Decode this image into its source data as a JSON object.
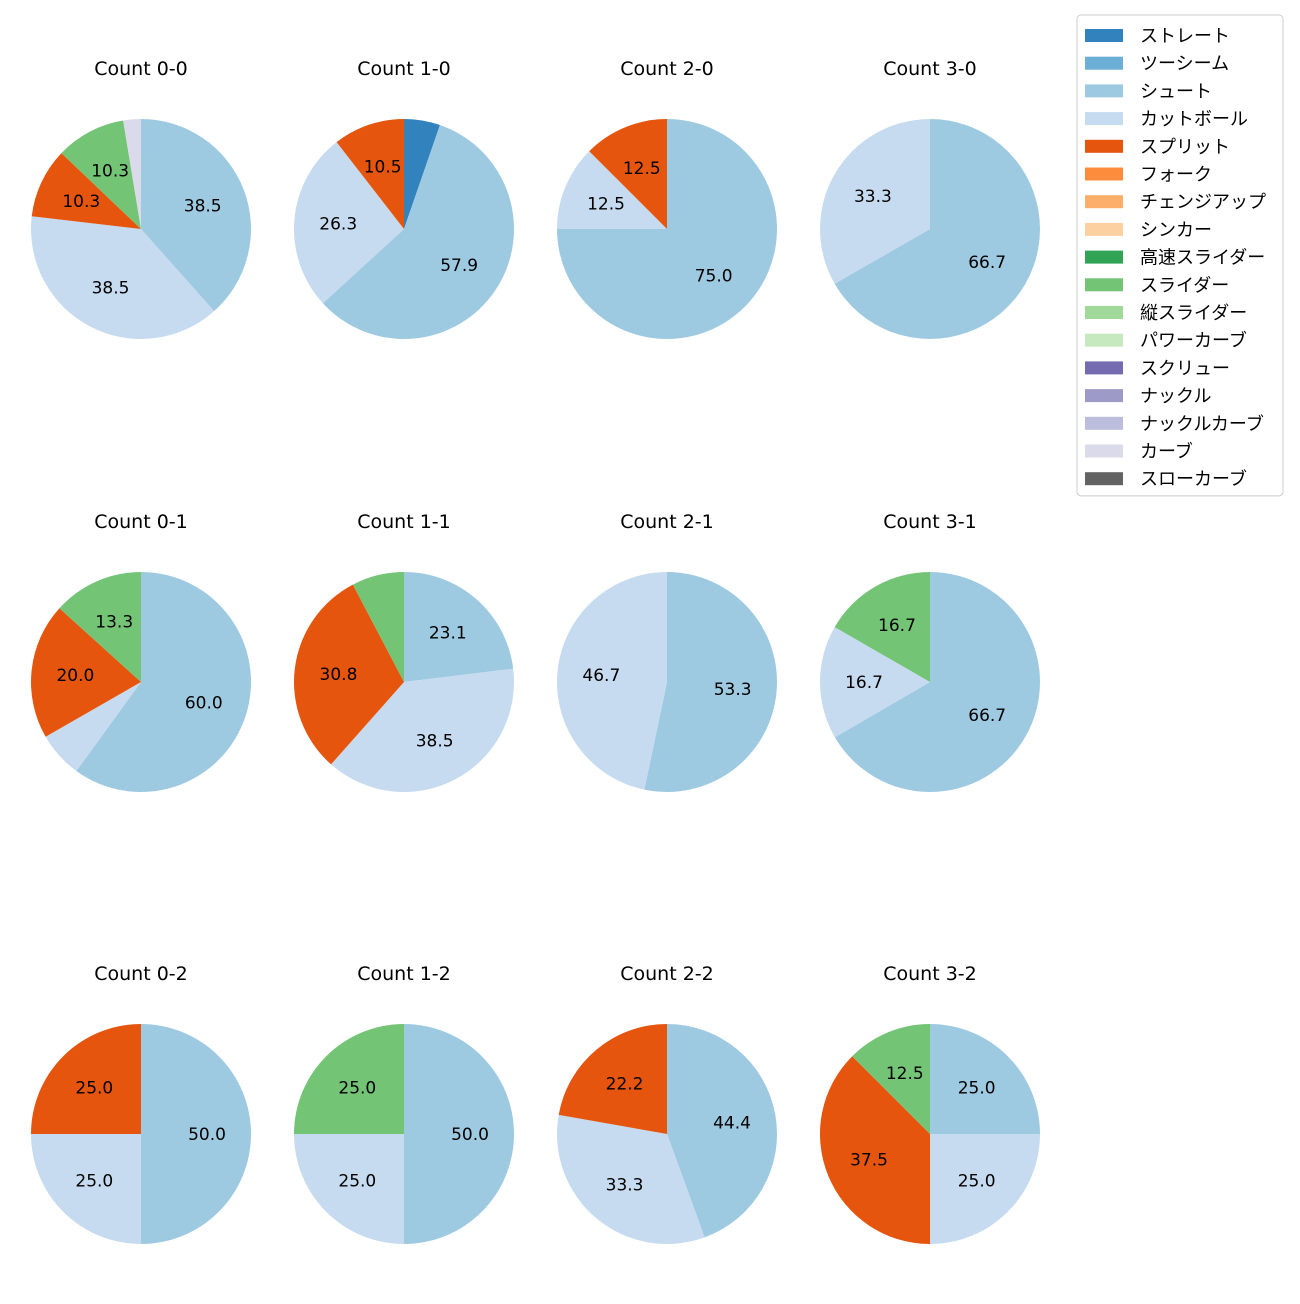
{
  "chart_data": {
    "type": "pie",
    "grid": false,
    "legend_position": "top-right",
    "pitch_types": [
      {
        "name": "ストレート",
        "color": "#3182bd"
      },
      {
        "name": "ツーシーム",
        "color": "#6baed6"
      },
      {
        "name": "シュート",
        "color": "#9ecae1"
      },
      {
        "name": "カットボール",
        "color": "#c6dbef"
      },
      {
        "name": "スプリット",
        "color": "#e6550d"
      },
      {
        "name": "フォーク",
        "color": "#fd8d3c"
      },
      {
        "name": "チェンジアップ",
        "color": "#fdae6b"
      },
      {
        "name": "シンカー",
        "color": "#fdd0a2"
      },
      {
        "name": "高速スライダー",
        "color": "#31a354"
      },
      {
        "name": "スライダー",
        "color": "#74c476"
      },
      {
        "name": "縦スライダー",
        "color": "#a1d99b"
      },
      {
        "name": "パワーカーブ",
        "color": "#c7e9c0"
      },
      {
        "name": "スクリュー",
        "color": "#756bb1"
      },
      {
        "name": "ナックル",
        "color": "#9e9ac8"
      },
      {
        "name": "ナックルカーブ",
        "color": "#bcbddc"
      },
      {
        "name": "カーブ",
        "color": "#dadaeb"
      },
      {
        "name": "スローカーブ",
        "color": "#636363"
      }
    ],
    "charts": [
      {
        "title": "Count 0-0",
        "slices": [
          {
            "type": "シュート",
            "value": 38.5,
            "label": "38.5"
          },
          {
            "type": "カットボール",
            "value": 38.5,
            "label": "38.5"
          },
          {
            "type": "スプリット",
            "value": 10.3,
            "label": "10.3"
          },
          {
            "type": "スライダー",
            "value": 10.3,
            "label": "10.3"
          },
          {
            "type": "カーブ",
            "value": 2.6,
            "label": ""
          }
        ]
      },
      {
        "title": "Count 1-0",
        "slices": [
          {
            "type": "ストレート",
            "value": 5.3,
            "label": ""
          },
          {
            "type": "シュート",
            "value": 57.9,
            "label": "57.9"
          },
          {
            "type": "カットボール",
            "value": 26.3,
            "label": "26.3"
          },
          {
            "type": "スプリット",
            "value": 10.5,
            "label": "10.5"
          }
        ]
      },
      {
        "title": "Count 2-0",
        "slices": [
          {
            "type": "シュート",
            "value": 75.0,
            "label": "75.0"
          },
          {
            "type": "カットボール",
            "value": 12.5,
            "label": "12.5"
          },
          {
            "type": "スプリット",
            "value": 12.5,
            "label": "12.5"
          }
        ]
      },
      {
        "title": "Count 3-0",
        "slices": [
          {
            "type": "シュート",
            "value": 66.7,
            "label": "66.7"
          },
          {
            "type": "カットボール",
            "value": 33.3,
            "label": "33.3"
          }
        ]
      },
      {
        "title": "Count 0-1",
        "slices": [
          {
            "type": "シュート",
            "value": 60.0,
            "label": "60.0"
          },
          {
            "type": "カットボール",
            "value": 6.7,
            "label": ""
          },
          {
            "type": "スプリット",
            "value": 20.0,
            "label": "20.0"
          },
          {
            "type": "スライダー",
            "value": 13.3,
            "label": "13.3"
          }
        ]
      },
      {
        "title": "Count 1-1",
        "slices": [
          {
            "type": "シュート",
            "value": 23.1,
            "label": "23.1"
          },
          {
            "type": "カットボール",
            "value": 38.5,
            "label": "38.5"
          },
          {
            "type": "スプリット",
            "value": 30.8,
            "label": "30.8"
          },
          {
            "type": "スライダー",
            "value": 7.7,
            "label": ""
          }
        ]
      },
      {
        "title": "Count 2-1",
        "slices": [
          {
            "type": "シュート",
            "value": 53.3,
            "label": "53.3"
          },
          {
            "type": "カットボール",
            "value": 46.7,
            "label": "46.7"
          }
        ]
      },
      {
        "title": "Count 3-1",
        "slices": [
          {
            "type": "シュート",
            "value": 66.7,
            "label": "66.7"
          },
          {
            "type": "カットボール",
            "value": 16.7,
            "label": "16.7"
          },
          {
            "type": "スライダー",
            "value": 16.7,
            "label": "16.7"
          }
        ]
      },
      {
        "title": "Count 0-2",
        "slices": [
          {
            "type": "シュート",
            "value": 50.0,
            "label": "50.0"
          },
          {
            "type": "カットボール",
            "value": 25.0,
            "label": "25.0"
          },
          {
            "type": "スプリット",
            "value": 25.0,
            "label": "25.0"
          }
        ]
      },
      {
        "title": "Count 1-2",
        "slices": [
          {
            "type": "シュート",
            "value": 50.0,
            "label": "50.0"
          },
          {
            "type": "カットボール",
            "value": 25.0,
            "label": "25.0"
          },
          {
            "type": "スライダー",
            "value": 25.0,
            "label": "25.0"
          }
        ]
      },
      {
        "title": "Count 2-2",
        "slices": [
          {
            "type": "シュート",
            "value": 44.4,
            "label": "44.4"
          },
          {
            "type": "カットボール",
            "value": 33.3,
            "label": "33.3"
          },
          {
            "type": "スプリット",
            "value": 22.2,
            "label": "22.2"
          }
        ]
      },
      {
        "title": "Count 3-2",
        "slices": [
          {
            "type": "シュート",
            "value": 25.0,
            "label": "25.0"
          },
          {
            "type": "カットボール",
            "value": 25.0,
            "label": "25.0"
          },
          {
            "type": "スプリット",
            "value": 37.5,
            "label": "37.5"
          },
          {
            "type": "スライダー",
            "value": 12.5,
            "label": "12.5"
          }
        ]
      }
    ]
  }
}
